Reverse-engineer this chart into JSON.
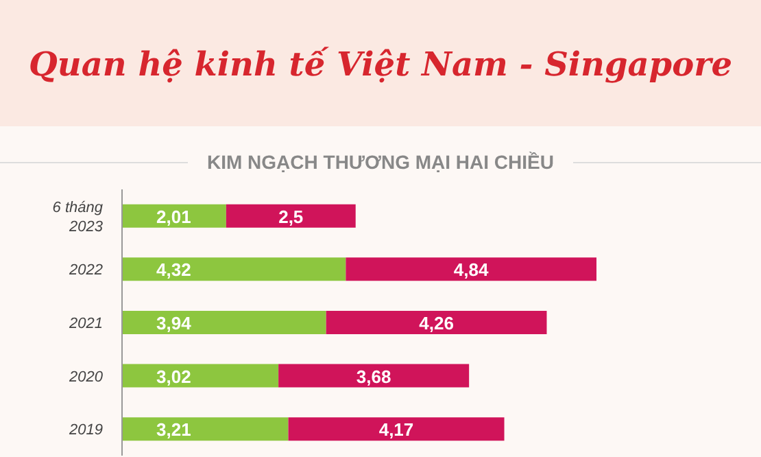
{
  "chart_data": {
    "type": "bar",
    "title": "Quan hệ kinh tế Việt Nam - Singapore",
    "subtitle": "KIM NGẠCH THƯƠNG MẠI HAI CHIỀU",
    "orientation": "horizontal",
    "stacked": true,
    "tick_labels": "y",
    "categories": [
      "6 tháng 2023",
      "2022",
      "2021",
      "2020",
      "2019"
    ],
    "series": [
      {
        "color": "#8dc63f",
        "values": [
          2.01,
          4.32,
          3.94,
          3.02,
          3.21
        ],
        "value_labels": [
          "2,01",
          "4,32",
          "3,94",
          "3,02",
          "3,21"
        ]
      },
      {
        "color": "#d0145a",
        "values": [
          2.5,
          4.84,
          4.26,
          3.68,
          4.17
        ],
        "value_labels": [
          "2,5",
          "4,84",
          "4,26",
          "3,68",
          "4,17"
        ]
      }
    ]
  }
}
